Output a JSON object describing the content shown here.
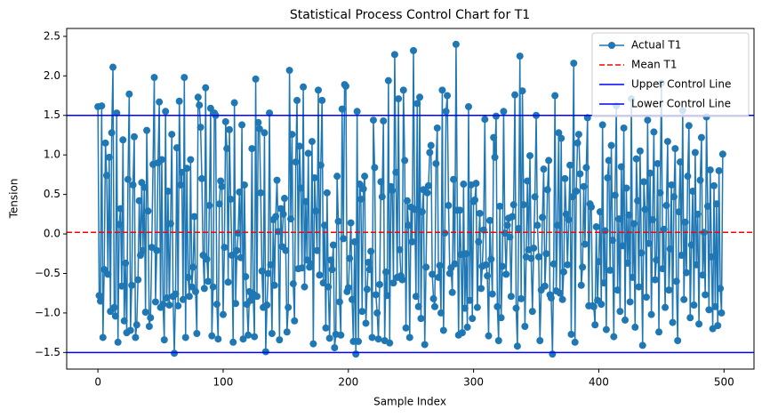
{
  "chart_data": {
    "type": "line",
    "title": "Statistical Process Control Chart for T1",
    "xlabel": "Sample Index",
    "ylabel": "Tension",
    "xlim": [
      -24.95,
      523.95
    ],
    "ylim": [
      -1.71,
      2.6
    ],
    "xticks": [
      0,
      100,
      200,
      300,
      400,
      500
    ],
    "yticks": [
      {
        "value": -1.5,
        "label": "−1.5"
      },
      {
        "value": -1,
        "label": "−1.0"
      },
      {
        "value": -0.5,
        "label": "−0.5"
      },
      {
        "value": 0,
        "label": "0.0"
      },
      {
        "value": 0.5,
        "label": "0.5"
      },
      {
        "value": 1,
        "label": "1.0"
      },
      {
        "value": 1.5,
        "label": "1.5"
      },
      {
        "value": 2,
        "label": "2.0"
      },
      {
        "value": 2.5,
        "label": "2.5"
      }
    ],
    "legend": "upper right",
    "x": [
      0,
      1,
      2,
      3,
      4,
      5,
      6,
      7,
      8,
      9,
      10,
      11,
      12,
      13,
      14,
      15,
      16,
      17,
      18,
      19,
      20,
      21,
      22,
      23,
      24,
      25,
      26,
      27,
      28,
      29,
      30,
      31,
      32,
      33,
      34,
      35,
      36,
      37,
      38,
      39,
      40,
      41,
      42,
      43,
      44,
      45,
      46,
      47,
      48,
      49,
      50,
      51,
      52,
      53,
      54,
      55,
      56,
      57,
      58,
      59,
      60,
      61,
      62,
      63,
      64,
      65,
      66,
      67,
      68,
      69,
      70,
      71,
      72,
      73,
      74,
      75,
      76,
      77,
      78,
      79,
      80,
      81,
      82,
      83,
      84,
      85,
      86,
      87,
      88,
      89,
      90,
      91,
      92,
      93,
      94,
      95,
      96,
      97,
      98,
      99,
      100,
      101,
      102,
      103,
      104,
      105,
      106,
      107,
      108,
      109,
      110,
      111,
      112,
      113,
      114,
      115,
      116,
      117,
      118,
      119,
      120,
      121,
      122,
      123,
      124,
      125,
      126,
      127,
      128,
      129,
      130,
      131,
      132,
      133,
      134,
      135,
      136,
      137,
      138,
      139,
      140,
      141,
      142,
      143,
      144,
      145,
      146,
      147,
      148,
      149,
      150,
      151,
      152,
      153,
      154,
      155,
      156,
      157,
      158,
      159,
      160,
      161,
      162,
      163,
      164,
      165,
      166,
      167,
      168,
      169,
      170,
      171,
      172,
      173,
      174,
      175,
      176,
      177,
      178,
      179,
      180,
      181,
      182,
      183,
      184,
      185,
      186,
      187,
      188,
      189,
      190,
      191,
      192,
      193,
      194,
      195,
      196,
      197,
      198,
      199,
      200,
      201,
      202,
      203,
      204,
      205,
      206,
      207,
      208,
      209,
      210,
      211,
      212,
      213,
      214,
      215,
      216,
      217,
      218,
      219,
      220,
      221,
      222,
      223,
      224,
      225,
      226,
      227,
      228,
      229,
      230,
      231,
      232,
      233,
      234,
      235,
      236,
      237,
      238,
      239,
      240,
      241,
      242,
      243,
      244,
      245,
      246,
      247,
      248,
      249,
      250,
      251,
      252,
      253,
      254,
      255,
      256,
      257,
      258,
      259,
      260,
      261,
      262,
      263,
      264,
      265,
      266,
      267,
      268,
      269,
      270,
      271,
      272,
      273,
      274,
      275,
      276,
      277,
      278,
      279,
      280,
      281,
      282,
      283,
      284,
      285,
      286,
      287,
      288,
      289,
      290,
      291,
      292,
      293,
      294,
      295,
      296,
      297,
      298,
      299,
      300,
      301,
      302,
      303,
      304,
      305,
      306,
      307,
      308,
      309,
      310,
      311,
      312,
      313,
      314,
      315,
      316,
      317,
      318,
      319,
      320,
      321,
      322,
      323,
      324,
      325,
      326,
      327,
      328,
      329,
      330,
      331,
      332,
      333,
      334,
      335,
      336,
      337,
      338,
      339,
      340,
      341,
      342,
      343,
      344,
      345,
      346,
      347,
      348,
      349,
      350,
      351,
      352,
      353,
      354,
      355,
      356,
      357,
      358,
      359,
      360,
      361,
      362,
      363,
      364,
      365,
      366,
      367,
      368,
      369,
      370,
      371,
      372,
      373,
      374,
      375,
      376,
      377,
      378,
      379,
      380,
      381,
      382,
      383,
      384,
      385,
      386,
      387,
      388,
      389,
      390,
      391,
      392,
      393,
      394,
      395,
      396,
      397,
      398,
      399,
      400,
      401,
      402,
      403,
      404,
      405,
      406,
      407,
      408,
      409,
      410,
      411,
      412,
      413,
      414,
      415,
      416,
      417,
      418,
      419,
      420,
      421,
      422,
      423,
      424,
      425,
      426,
      427,
      428,
      429,
      430,
      431,
      432,
      433,
      434,
      435,
      436,
      437,
      438,
      439,
      440,
      441,
      442,
      443,
      444,
      445,
      446,
      447,
      448,
      449,
      450,
      451,
      452,
      453,
      454,
      455,
      456,
      457,
      458,
      459,
      460,
      461,
      462,
      463,
      464,
      465,
      466,
      467,
      468,
      469,
      470,
      471,
      472,
      473,
      474,
      475,
      476,
      477,
      478,
      479,
      480,
      481,
      482,
      483,
      484,
      485,
      486,
      487,
      488,
      489,
      490,
      491,
      492,
      493,
      494,
      495,
      496,
      497,
      498,
      499
    ],
    "series": [
      {
        "name": "Actual T1",
        "color": "#1f77b4",
        "values": [
          1.61,
          -0.78,
          -0.85,
          1.62,
          -1.31,
          -0.45,
          1.15,
          0.74,
          -0.51,
          0.97,
          -0.98,
          1.28,
          2.11,
          -0.93,
          -1.04,
          1.53,
          -1.37,
          0.12,
          0.32,
          -0.66,
          1.19,
          -1.1,
          -0.37,
          -1.25,
          0.69,
          1.77,
          -1.22,
          -0.65,
          0.62,
          1.23,
          -1.31,
          -1.15,
          -0.58,
          0.42,
          -0.27,
          0.65,
          -0.21,
          0.59,
          -0.99,
          1.31,
          0.29,
          -1.17,
          -1.06,
          -0.17,
          0.88,
          1.98,
          -0.86,
          -0.21,
          0.9,
          1.67,
          -0.93,
          0.94,
          -0.89,
          -1.34,
          1.55,
          -0.81,
          0.54,
          -0.9,
          0.13,
          1.26,
          -0.79,
          -1.51,
          -0.76,
          1.09,
          -0.91,
          1.68,
          0.62,
          0.78,
          -0.83,
          1.98,
          -1.31,
          0.83,
          -0.55,
          -0.79,
          0.94,
          -0.67,
          -0.42,
          0.22,
          -0.73,
          -1.26,
          1.73,
          1.63,
          1.35,
          0.7,
          -0.27,
          -0.69,
          1.85,
          -0.32,
          -0.6,
          0.36,
          1.59,
          -1.29,
          -0.67,
          1.53,
          1.5,
          -0.89,
          -1.33,
          0.38,
          0.67,
          0.6,
          -1.02,
          -0.17,
          1.42,
          1.08,
          -0.61,
          1.32,
          0.44,
          -0.27,
          -1.37,
          1.66,
          -0.88,
          -0.21,
          0.01,
          0.53,
          -0.3,
          1.38,
          -1.33,
          0.62,
          -0.54,
          -0.89,
          -1.28,
          -0.73,
          -0.84,
          1.08,
          -0.76,
          -1.3,
          1.96,
          -0.79,
          1.41,
          1.33,
          0.52,
          -0.47,
          -0.93,
          1.28,
          -1.49,
          -0.9,
          -0.5,
          1.53,
          -0.39,
          -1.26,
          0.18,
          -0.65,
          0.22,
          0.68,
          0.03,
          -1.34,
          0.32,
          -0.16,
          0.25,
          0.45,
          -0.21,
          -1.24,
          -0.93,
          2.07,
          0.19,
          1.26,
          -0.63,
          -1.1,
          0.91,
          1.69,
          -0.44,
          1.11,
          0.58,
          -0.43,
          1.86,
          -0.67,
          0.41,
          -0.33,
          1.02,
          -0.42,
          -0.38,
          1.17,
          -1.39,
          0.71,
          0.29,
          -0.21,
          1.82,
          -0.52,
          0.87,
          1.69,
          -0.62,
          0.11,
          -1.19,
          0.52,
          -0.67,
          -1.32,
          -0.33,
          -0.45,
          -0.14,
          -1.44,
          -1.27,
          0.73,
          0.16,
          -0.86,
          -1.28,
          1.58,
          -0.06,
          1.89,
          1.87,
          -0.73,
          -0.68,
          -0.31,
          0.14,
          -0.83,
          -1.36,
          -0.1,
          -1.52,
          1.55,
          -1.36,
          0.63,
          0.44,
          -0.98,
          0.57,
          0.73,
          -1.13,
          -0.7,
          -0.36,
          -0.45,
          -0.22,
          -1.31,
          1.44,
          0.84,
          -0.77,
          -1.0,
          -1.33,
          -0.64,
          0.66,
          0.47,
          1.43,
          -1.35,
          -0.48,
          -0.78,
          1.94,
          -1.38,
          0.6,
          0.55,
          -0.62,
          2.27,
          0.78,
          -0.55,
          1.71,
          -0.2,
          -0.53,
          -0.58,
          1.82,
          0.93,
          -1.19,
          0.42,
          0.11,
          -1.31,
          0.34,
          -0.1,
          2.32,
          0.31,
          -0.79,
          1.65,
          -0.92,
          1.73,
          -1.07,
          0.28,
          0.56,
          -1.4,
          -0.42,
          0.52,
          0.61,
          1.03,
          1.12,
          -0.51,
          -0.82,
          -0.92,
          0.89,
          1.34,
          -0.55,
          -0.4,
          -1.0,
          1.82,
          -1.22,
          0.01,
          1.55,
          1.75,
          0.36,
          -0.5,
          -0.43,
          -0.74,
          0.69,
          -0.38,
          2.4,
          0.3,
          -1.28,
          0.3,
          -0.26,
          -1.25,
          0.63,
          -0.94,
          -0.25,
          -1.18,
          1.61,
          -0.84,
          0.62,
          -1.07,
          0.41,
          0.43,
          0.64,
          -0.93,
          -0.1,
          0.26,
          -0.69,
          -0.41,
          0.05,
          1.45,
          -0.39,
          -0.53,
          -1.29,
          0.17,
          -0.32,
          -0.76,
          1.22,
          0.97,
          1.49,
          -0.92,
          -1.35,
          0.35,
          -1.06,
          -0.41,
          1.55,
          0.01,
          -0.51,
          0.11,
          0.2,
          -0.04,
          -0.79,
          0.22,
          0.37,
          1.76,
          -0.94,
          -1.42,
          0.07,
          2.25,
          -0.82,
          1.81,
          0.37,
          -1.17,
          -0.29,
          0.67,
          -0.2,
          0.99,
          -0.31,
          -0.98,
          -0.18,
          0.47,
          1.5,
          0.11,
          -0.29,
          -1.35,
          -0.71,
          0.21,
          0.82,
          -0.66,
          -0.25,
          0.56,
          0.93,
          -0.77,
          -0.81,
          -1.52,
          -0.38,
          1.75,
          -0.72,
          0.11,
          1.28,
          -0.75,
          1.21,
          -0.83,
          -0.48,
          0.7,
          0.25,
          -0.39,
          0.18,
          0.87,
          -1.27,
          0.47,
          2.16,
          -1.37,
          0.54,
          1.15,
          1.26,
          0.76,
          -0.65,
          -0.42,
          0.6,
          -0.13,
          0.84,
          1.47,
          -0.91,
          0.38,
          0.34,
          -0.91,
          -0.92,
          -1.15,
          0.09,
          -0.84,
          -0.35,
          0.28,
          -0.89,
          1.38,
          -0.62,
          0.04,
          -1.21,
          0.71,
          0.93,
          -0.46,
          1.12,
          -0.08,
          -1.3,
          0.49,
          1.62,
          -0.71,
          0.19,
          -0.98,
          0.85,
          -0.15,
          1.34,
          -1.09,
          0.58,
          -0.37,
          0.24,
          -0.86,
          1.71,
          -0.55,
          0.13,
          -1.18,
          0.95,
          0.42,
          -0.67,
          1.05,
          -0.24,
          -1.41,
          0.66,
          0.31,
          -0.8,
          1.44,
          -0.12,
          0.77,
          -1.02,
          0.18,
          1.29,
          -0.58,
          -0.33,
          0.89,
          -1.24,
          0.52,
          1.91,
          -0.44,
          0.06,
          -0.93,
          0.36,
          1.17,
          -0.71,
          -0.19,
          0.62,
          -1.12,
          0.47,
          1.08,
          -0.6,
          -1.35,
          0.28,
          0.91,
          -0.27,
          1.56,
          -0.83,
          0.15,
          -0.49,
          0.73,
          1.37,
          -1.06,
          -0.14,
          0.54,
          -0.9,
          1.03,
          -0.39,
          0.25,
          -1.14,
          0.68,
          1.22,
          -0.52,
          0.02,
          -0.77,
          1.48,
          0.35,
          -0.96,
          0.81,
          -0.29,
          -1.2,
          0.61,
          -0.92,
          0.38,
          -1.16,
          0.8,
          -0.69,
          -1.0,
          1.01
        ]
      }
    ],
    "reference_lines": [
      {
        "name": "Mean T1",
        "value": 0.02,
        "color": "#ff0000",
        "dashed": true
      },
      {
        "name": "Upper Control Line",
        "value": 1.5,
        "color": "#0000ff",
        "dashed": false
      },
      {
        "name": "Lower Control Line",
        "value": -1.5,
        "color": "#0000ff",
        "dashed": false
      }
    ]
  }
}
